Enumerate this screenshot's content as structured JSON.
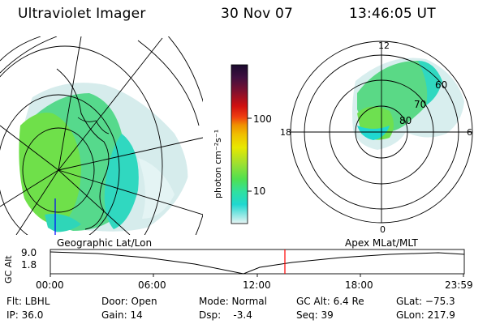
{
  "header": {
    "instrument": "Ultraviolet Imager",
    "date": "30 Nov 07",
    "time": "13:46:05 UT"
  },
  "colorbar": {
    "label": "photon cm⁻²s⁻¹",
    "ticks": [
      "100",
      "10"
    ],
    "colors": [
      "#1a0a2e",
      "#401040",
      "#701030",
      "#a01020",
      "#d01010",
      "#f04010",
      "#f08000",
      "#f0b000",
      "#e8e000",
      "#a8e030",
      "#60e050",
      "#30e0a0",
      "#20d8d0",
      "#80e0e0",
      "#d8f0f0"
    ]
  },
  "left_map": {
    "caption": "Geographic Lat/Lon"
  },
  "right_map": {
    "caption": "Apex MLat/MLT",
    "lat_labels": [
      "60",
      "70",
      "80"
    ],
    "mlt_labels": {
      "top": "12",
      "left": "18",
      "right": "6",
      "bottom": "0"
    }
  },
  "timeline": {
    "ylabel": "GC Alt",
    "y_ticks": [
      "9.0",
      "1.8"
    ],
    "x_ticks": [
      "00:00",
      "06:00",
      "12:00",
      "18:00",
      "23:59"
    ]
  },
  "info": {
    "flt": "Flt: LBHL",
    "ip": "IP: 36.0",
    "door": "Door: Open",
    "gain": "Gain: 14",
    "mode": "Mode: Normal",
    "dsp": "Dsp:    -3.4",
    "gcalt": "GC Alt: 6.4 Re",
    "seq": "Seq: 39",
    "glat": "GLat: −75.3",
    "glon": "GLon: 217.9"
  }
}
